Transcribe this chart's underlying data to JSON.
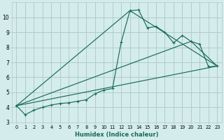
{
  "xlabel": "Humidex (Indice chaleur)",
  "background_color": "#d4ecec",
  "grid_color": "#b0cccc",
  "line_color": "#1a6b5a",
  "xlim": [
    -0.5,
    23.5
  ],
  "ylim": [
    3,
    11
  ],
  "xticks": [
    0,
    1,
    2,
    3,
    4,
    5,
    6,
    7,
    8,
    9,
    10,
    11,
    12,
    13,
    14,
    15,
    16,
    17,
    18,
    19,
    20,
    21,
    22,
    23
  ],
  "yticks": [
    3,
    4,
    5,
    6,
    7,
    8,
    9,
    10
  ],
  "series_main": {
    "x": [
      0,
      1,
      2,
      3,
      4,
      5,
      6,
      7,
      8,
      9,
      10,
      11,
      12,
      13,
      14,
      15,
      16,
      17,
      18,
      19,
      20,
      21,
      22,
      23
    ],
    "y": [
      4.1,
      3.5,
      3.8,
      4.0,
      4.15,
      4.25,
      4.3,
      4.4,
      4.5,
      4.9,
      5.15,
      5.25,
      8.35,
      10.45,
      10.5,
      9.3,
      9.4,
      9.0,
      8.3,
      8.8,
      8.4,
      8.2,
      6.7,
      6.75
    ]
  },
  "series_lines": [
    {
      "x": [
        0,
        23
      ],
      "y": [
        4.1,
        6.75
      ]
    },
    {
      "x": [
        0,
        13,
        23
      ],
      "y": [
        4.1,
        10.45,
        6.75
      ]
    },
    {
      "x": [
        0,
        20,
        23
      ],
      "y": [
        4.1,
        8.4,
        6.75
      ]
    }
  ]
}
